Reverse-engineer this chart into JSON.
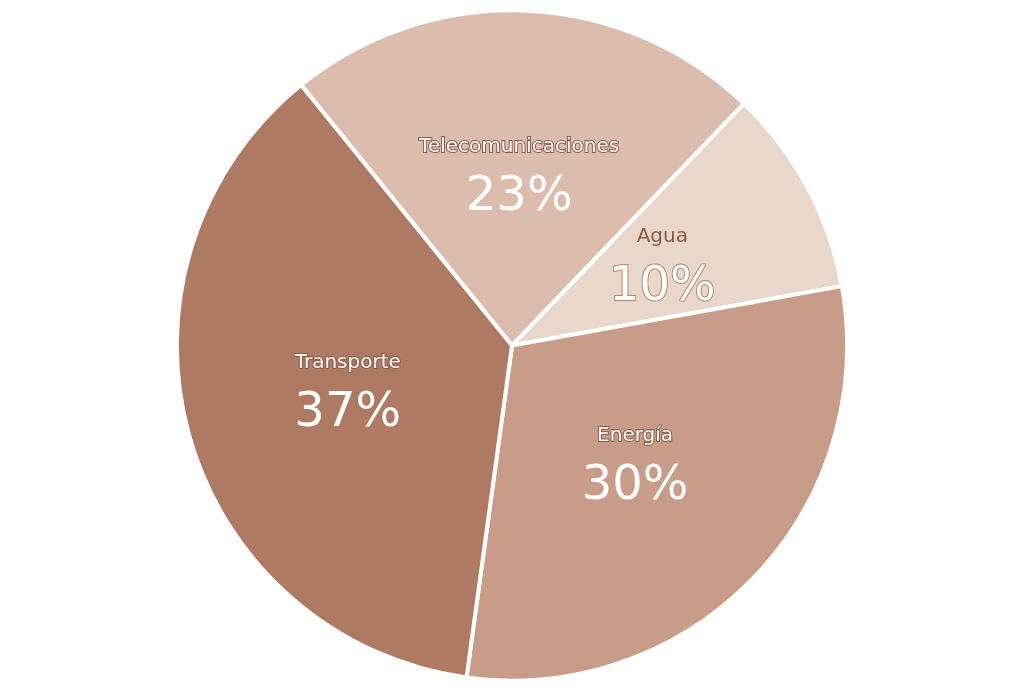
{
  "chart_data": {
    "type": "pie",
    "categories": [
      "Telecomunicaciones",
      "Agua",
      "Energía",
      "Transporte"
    ],
    "values": [
      23,
      10,
      30,
      37
    ],
    "value_labels": [
      "23%",
      "10%",
      "30%",
      "37%"
    ],
    "colors": [
      "#dcbcad",
      "#e9d7cb",
      "#c79c88",
      "#ae7a64"
    ],
    "legend": false
  }
}
